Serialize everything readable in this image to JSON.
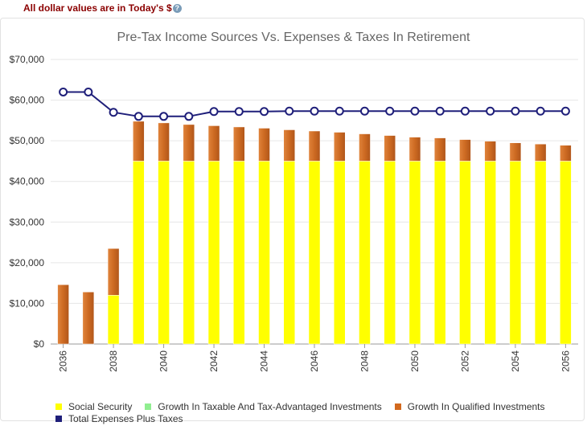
{
  "notice": {
    "text": "All dollar values are in Today's $",
    "help_symbol": "?"
  },
  "chart_data": {
    "type": "bar",
    "stacked": true,
    "title": "Pre-Tax Income Sources Vs. Expenses & Taxes In Retirement",
    "ylim": [
      0,
      70000
    ],
    "y_ticks": [
      "$0",
      "$10,000",
      "$20,000",
      "$30,000",
      "$40,000",
      "$50,000",
      "$60,000",
      "$70,000"
    ],
    "y_tick_values": [
      0,
      10000,
      20000,
      30000,
      40000,
      50000,
      60000,
      70000
    ],
    "categories": [
      "2036",
      "2037",
      "2038",
      "2039",
      "2040",
      "2041",
      "2042",
      "2043",
      "2044",
      "2045",
      "2046",
      "2047",
      "2048",
      "2049",
      "2050",
      "2051",
      "2052",
      "2053",
      "2054",
      "2055",
      "2056"
    ],
    "x_tick_labels": [
      "2036",
      "2038",
      "2040",
      "2042",
      "2044",
      "2046",
      "2048",
      "2050",
      "2052",
      "2054",
      "2056"
    ],
    "series": [
      {
        "name": "Social Security",
        "color": "#ffff00",
        "kind": "bar",
        "values": [
          0,
          0,
          12000,
          45000,
          45000,
          45000,
          45000,
          45000,
          45000,
          45000,
          45000,
          45000,
          45000,
          45000,
          45000,
          45000,
          45000,
          45000,
          45000,
          45000,
          45000
        ]
      },
      {
        "name": "Growth In Taxable And Tax-Advantaged Investments",
        "color": "#90ee90",
        "kind": "bar",
        "values": [
          0,
          0,
          0,
          0,
          0,
          0,
          0,
          0,
          0,
          0,
          0,
          0,
          0,
          0,
          0,
          0,
          0,
          0,
          0,
          0,
          0
        ]
      },
      {
        "name": "Growth In Qualified Investments",
        "color": "#d2691e",
        "kind": "bar",
        "values": [
          14600,
          12800,
          11500,
          9800,
          9400,
          9000,
          8700,
          8400,
          8100,
          7700,
          7400,
          7100,
          6700,
          6300,
          5900,
          5700,
          5300,
          4900,
          4500,
          4200,
          3900
        ]
      },
      {
        "name": "Total Expenses Plus Taxes",
        "color": "#1f1f7a",
        "kind": "line",
        "values": [
          62000,
          62000,
          57000,
          56000,
          56000,
          56000,
          57200,
          57200,
          57200,
          57300,
          57300,
          57300,
          57300,
          57300,
          57300,
          57300,
          57300,
          57300,
          57300,
          57300,
          57300
        ]
      }
    ]
  }
}
